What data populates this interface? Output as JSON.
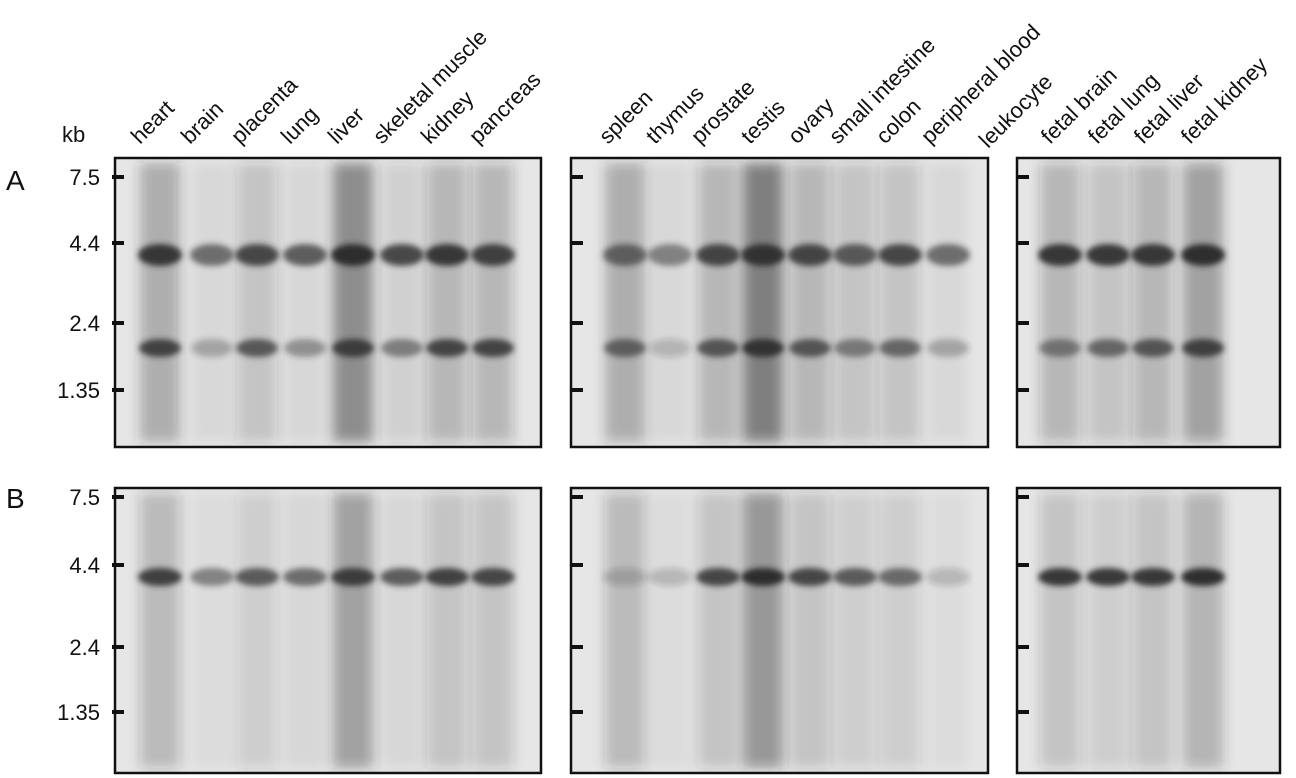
{
  "kb_label": "kb",
  "markers": [
    "7.5",
    "4.4",
    "2.4",
    "1.35"
  ],
  "panels": [
    {
      "label": "A"
    },
    {
      "label": "B"
    }
  ],
  "groups": [
    {
      "lanes": [
        [
          "heart"
        ],
        [
          "brain"
        ],
        [
          "placenta"
        ],
        [
          "lung"
        ],
        [
          "liver"
        ],
        [
          "skeletal muscle"
        ],
        [
          "kidney"
        ],
        [
          "pancreas"
        ]
      ]
    },
    {
      "lanes": [
        [
          "spleen"
        ],
        [
          "thymus"
        ],
        [
          "prostate"
        ],
        [
          "testis"
        ],
        [
          "ovary"
        ],
        [
          "small intestine"
        ],
        [
          "colon"
        ],
        [
          "peripheral blood",
          "leukocyte"
        ]
      ]
    },
    {
      "lanes": [
        [
          "fetal brain"
        ],
        [
          "fetal lung"
        ],
        [
          "fetal liver"
        ],
        [
          "fetal kidney"
        ]
      ]
    }
  ]
}
